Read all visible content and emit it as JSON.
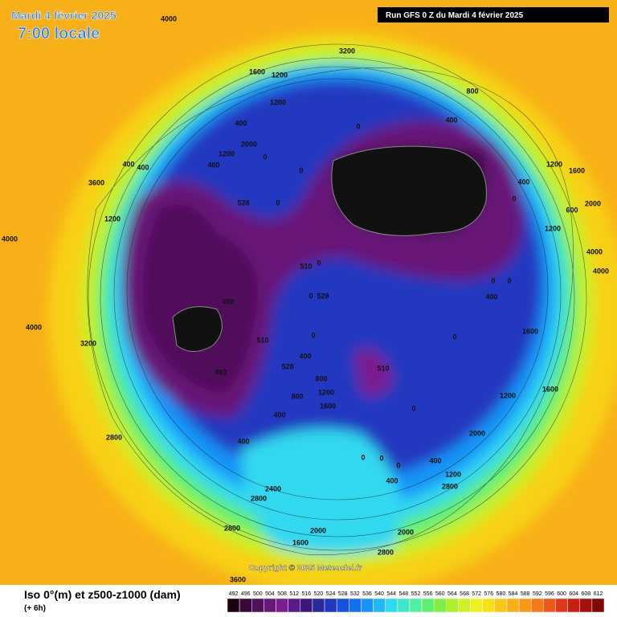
{
  "header": {
    "date": "Mardi 4 février 2025",
    "time": "7:00 locale",
    "run": "Run GFS 0 Z du Mardi 4 février 2025"
  },
  "copyright": "Copyright © 2025 Meteociel.fr",
  "legend": {
    "title": "Iso 0°(m) et z500-z1000 (dam)",
    "step": "(+ 6h)",
    "values": [
      492,
      496,
      500,
      504,
      508,
      512,
      516,
      520,
      524,
      528,
      532,
      536,
      540,
      544,
      548,
      552,
      556,
      560,
      564,
      568,
      572,
      576,
      580,
      584,
      588,
      592,
      596,
      600,
      604,
      608,
      612
    ],
    "colors": [
      "#1a0010",
      "#3a0838",
      "#50105a",
      "#681878",
      "#7a1e90",
      "#5a1a8a",
      "#3a1878",
      "#2a2a9a",
      "#2038c0",
      "#1850e0",
      "#1070f0",
      "#1894f8",
      "#20b8f8",
      "#30d8f0",
      "#40e8c8",
      "#50f0a0",
      "#60f070",
      "#80f040",
      "#a8f030",
      "#d0f028",
      "#f0f020",
      "#f8e018",
      "#f8c818",
      "#f8b018",
      "#f89818",
      "#f87818",
      "#f05818",
      "#e03818",
      "#c82010",
      "#a81010",
      "#800808"
    ]
  },
  "map": {
    "labels": [
      "4000",
      "3200",
      "1600",
      "1200",
      "1200",
      "800",
      "400",
      "400",
      "0",
      "2000",
      "1200",
      "0",
      "400",
      "400",
      "400",
      "0",
      "1200",
      "1600",
      "400",
      "492",
      "492",
      "492",
      "0",
      "528",
      "0",
      "3600",
      "1200",
      "600",
      "2000",
      "4000",
      "1200",
      "4000",
      "4000",
      "510",
      "0",
      "492",
      "492",
      "492",
      "510",
      "528",
      "0",
      "0",
      "400",
      "528",
      "510",
      "800",
      "0",
      "0",
      "400",
      "0",
      "1600",
      "1200",
      "1600",
      "4000",
      "3200",
      "2800",
      "400",
      "400",
      "800",
      "1200",
      "1600",
      "0",
      "2000",
      "1200",
      "2800",
      "400",
      "400",
      "2400",
      "2800",
      "2800",
      "2000",
      "2000",
      "2800",
      "1600",
      "3600",
      "0",
      "0",
      "0"
    ]
  }
}
